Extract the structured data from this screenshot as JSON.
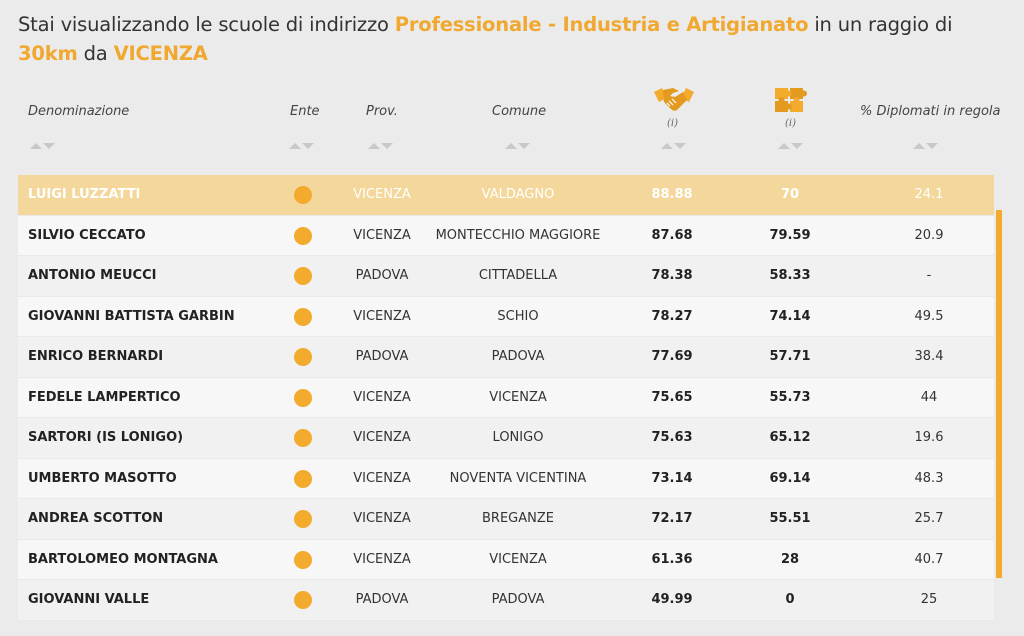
{
  "heading": {
    "part1": "Stai visualizzando le scuole di indirizzo ",
    "indirizzo": "Professionale - Industria e Artigianato",
    "part2": " in un raggio di ",
    "raggio": "30km",
    "part3": " da ",
    "citta": "VICENZA"
  },
  "columns": {
    "denominazione": "Denominazione",
    "ente": "Ente",
    "prov": "Prov.",
    "comune": "Comune",
    "score1_icon": "handshake-icon",
    "score1_info": "(i)",
    "score2_icon": "puzzle-icon",
    "score2_info": "(i)",
    "diplomati": "% Diplomati in regola"
  },
  "rows": [
    {
      "name": "LUIGI LUZZATTI",
      "prov": "VICENZA",
      "comune": "VALDAGNO",
      "s1": "88.88",
      "s2": "70",
      "pct": "24.1"
    },
    {
      "name": "SILVIO CECCATO",
      "prov": "VICENZA",
      "comune": "MONTECCHIO MAGGIORE",
      "s1": "87.68",
      "s2": "79.59",
      "pct": "20.9"
    },
    {
      "name": "ANTONIO MEUCCI",
      "prov": "PADOVA",
      "comune": "CITTADELLA",
      "s1": "78.38",
      "s2": "58.33",
      "pct": "-"
    },
    {
      "name": "GIOVANNI BATTISTA GARBIN",
      "prov": "VICENZA",
      "comune": "SCHIO",
      "s1": "78.27",
      "s2": "74.14",
      "pct": "49.5"
    },
    {
      "name": "ENRICO BERNARDI",
      "prov": "PADOVA",
      "comune": "PADOVA",
      "s1": "77.69",
      "s2": "57.71",
      "pct": "38.4"
    },
    {
      "name": "FEDELE LAMPERTICO",
      "prov": "VICENZA",
      "comune": "VICENZA",
      "s1": "75.65",
      "s2": "55.73",
      "pct": "44"
    },
    {
      "name": "SARTORI (IS LONIGO)",
      "prov": "VICENZA",
      "comune": "LONIGO",
      "s1": "75.63",
      "s2": "65.12",
      "pct": "19.6"
    },
    {
      "name": "UMBERTO MASOTTO",
      "prov": "VICENZA",
      "comune": "NOVENTA VICENTINA",
      "s1": "73.14",
      "s2": "69.14",
      "pct": "48.3"
    },
    {
      "name": "ANDREA SCOTTON",
      "prov": "VICENZA",
      "comune": "BREGANZE",
      "s1": "72.17",
      "s2": "55.51",
      "pct": "25.7"
    },
    {
      "name": "BARTOLOMEO MONTAGNA",
      "prov": "VICENZA",
      "comune": "VICENZA",
      "s1": "61.36",
      "s2": "28",
      "pct": "40.7"
    },
    {
      "name": "GIOVANNI VALLE",
      "prov": "PADOVA",
      "comune": "PADOVA",
      "s1": "49.99",
      "s2": "0",
      "pct": "25"
    }
  ],
  "colors": {
    "accent": "#f0a830",
    "highlight_row": "#f3d79b",
    "ente_dot": "#f2ab2d"
  }
}
